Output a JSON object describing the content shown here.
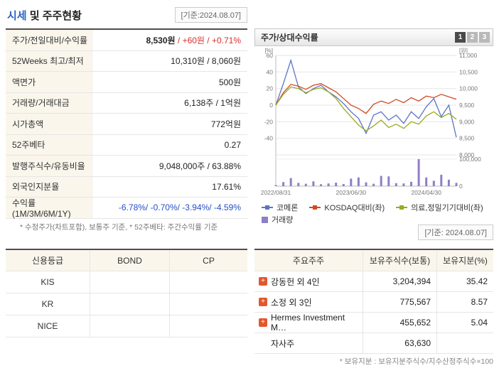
{
  "page": {
    "title_highlight": "시세",
    "title_rest": " 및 주주현황",
    "date_box": "[기준:2024.08.07]",
    "chart_date_box": "[기준: 2024.08.07]"
  },
  "quote": {
    "rows": [
      {
        "label": "주가/전일대비/수익률",
        "value_main": "8,530원",
        "value_change": " / +60원 / +0.71%"
      },
      {
        "label": "52Weeks 최고/최저",
        "value": "10,310원 / 8,060원"
      },
      {
        "label": "액면가",
        "value": "500원"
      },
      {
        "label": "거래량/거래대금",
        "value": "6,138주 / 1억원"
      },
      {
        "label": "시가총액",
        "value": "772억원"
      },
      {
        "label": "52주베타",
        "value": "0.27"
      },
      {
        "label": "발행주식수/유동비율",
        "value": "9,048,000주 / 63.88%"
      },
      {
        "label": "외국인지분율",
        "value": "17.61%"
      },
      {
        "label": "수익률 (1M/3M/6M/1Y)",
        "value": "-6.78%/ -0.70%/ -3.94%/ -4.59%"
      }
    ],
    "footnote": "* 수정주가(차트포함), 보통주 기준, * 52주베타: 주간수익률 기준"
  },
  "chart_panel": {
    "title": "주가/상대수익률",
    "tabs": [
      "1",
      "2",
      "3"
    ],
    "active_tab": "1"
  },
  "chart_data": {
    "type": "line",
    "title": "주가/상대수익률",
    "left_axis": {
      "label": "[%]",
      "min": -60,
      "max": 60,
      "ticks": [
        60,
        40,
        20,
        0,
        -20,
        -40
      ]
    },
    "right_axis": {
      "label": "[원]",
      "min": 8000,
      "max": 11000,
      "ticks": [
        11000,
        10500,
        10000,
        9500,
        9000,
        8500,
        8000
      ]
    },
    "volume_axis": {
      "max": 100000,
      "ticks": [
        100000,
        0
      ]
    },
    "x_ticks": [
      {
        "label": "2022/08/31",
        "index": 0
      },
      {
        "label": "2023/06/30",
        "index": 10
      },
      {
        "label": "2024/04/30",
        "index": 20
      }
    ],
    "series": [
      {
        "name": "코메론",
        "axis": "price",
        "color": "#5b74c8",
        "values": [
          9500,
          10150,
          10850,
          10050,
          9850,
          10000,
          10100,
          9900,
          9750,
          9550,
          9300,
          9100,
          8650,
          9200,
          9300,
          9050,
          9200,
          8950,
          9300,
          9100,
          9450,
          9700,
          9150,
          9500,
          8530
        ]
      },
      {
        "name": "KOSDAQ대비(좌)",
        "axis": "percent",
        "color": "#d2491f",
        "values": [
          0,
          15,
          25,
          23,
          19,
          24,
          26,
          21,
          16,
          8,
          0,
          -4,
          -10,
          1,
          5,
          2,
          7,
          3,
          9,
          5,
          11,
          9,
          13,
          10,
          7
        ]
      },
      {
        "name": "의료,정밀기기대비(좌)",
        "axis": "percent",
        "color": "#9aab1e",
        "values": [
          0,
          13,
          22,
          20,
          15,
          19,
          21,
          16,
          8,
          -4,
          -14,
          -24,
          -31,
          -25,
          -18,
          -27,
          -23,
          -28,
          -20,
          -23,
          -13,
          -8,
          -15,
          -10,
          -17
        ]
      }
    ],
    "volume": {
      "name": "거래량",
      "color": "#8f7fc4",
      "values": [
        4000,
        15000,
        30000,
        12000,
        9000,
        18000,
        7000,
        10000,
        13000,
        8000,
        28000,
        32000,
        14000,
        9000,
        38000,
        36000,
        11000,
        10000,
        16000,
        100000,
        32000,
        20000,
        42000,
        24000,
        12000
      ]
    }
  },
  "credit": {
    "headers": [
      "신용등급",
      "BOND",
      "CP"
    ],
    "rows": [
      {
        "agency": "KIS",
        "bond": "",
        "cp": ""
      },
      {
        "agency": "KR",
        "bond": "",
        "cp": ""
      },
      {
        "agency": "NICE",
        "bond": "",
        "cp": ""
      }
    ]
  },
  "shareholders": {
    "headers": [
      "주요주주",
      "보유주식수(보통)",
      "보유지분(%)"
    ],
    "rows": [
      {
        "name": "강동헌 외 4인",
        "shares": "3,204,394",
        "pct": "35.42",
        "expandable": true
      },
      {
        "name": "소정 외 3인",
        "shares": "775,567",
        "pct": "8.57",
        "expandable": true
      },
      {
        "name": "Hermes Investment M…",
        "shares": "455,652",
        "pct": "5.04",
        "expandable": true
      },
      {
        "name": "자사주",
        "shares": "63,630",
        "pct": "",
        "expandable": false
      }
    ],
    "footnote": "* 보유지분 : 보유지분주식수/지수산정주식수×100"
  }
}
